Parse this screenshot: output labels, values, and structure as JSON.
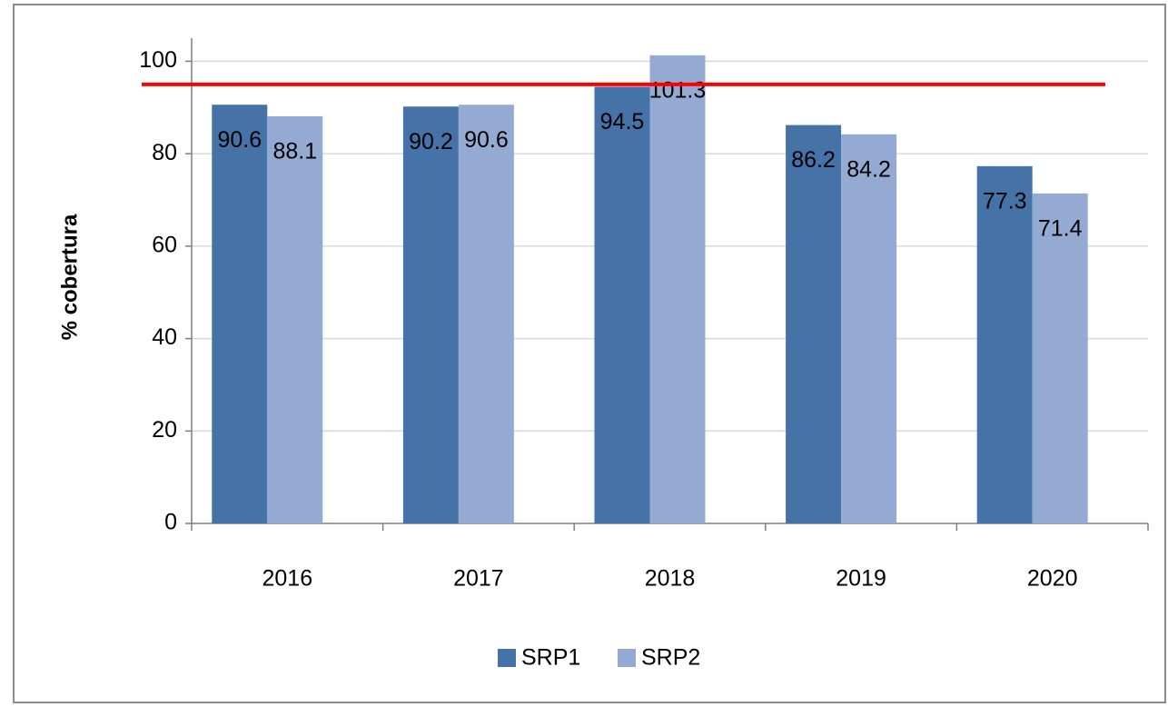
{
  "chart_data": {
    "type": "bar",
    "y_label": "% cobertura",
    "categories": [
      "2016",
      "2017",
      "2018",
      "2019",
      "2020"
    ],
    "series": [
      {
        "name": "SRP1",
        "color": "#4573a7",
        "values": [
          90.6,
          90.2,
          94.5,
          86.2,
          77.3
        ]
      },
      {
        "name": "SRP2",
        "color": "#95aad3",
        "values": [
          88.1,
          90.6,
          101.3,
          84.2,
          71.4
        ]
      }
    ],
    "ylim": [
      0,
      105
    ],
    "yticks": [
      0,
      20,
      40,
      60,
      80,
      100
    ],
    "grid": true,
    "target": 95,
    "target_color": "#ff0000",
    "legend": "bottom"
  }
}
